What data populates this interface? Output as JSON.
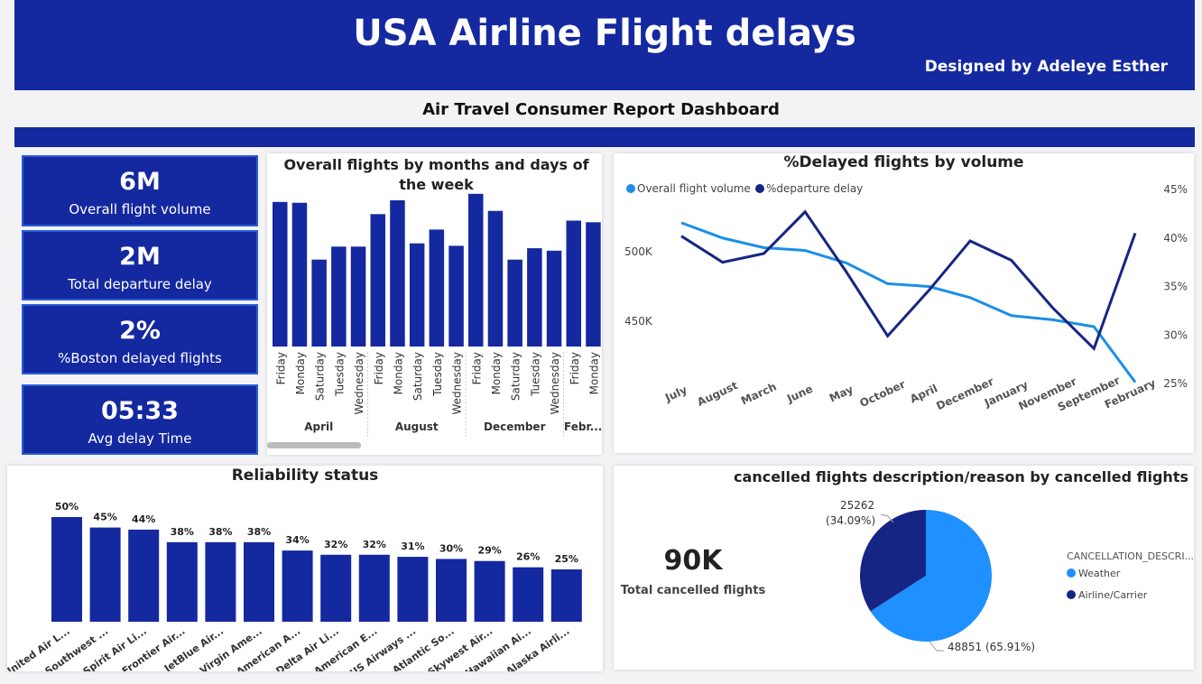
{
  "header": {
    "title": "USA Airline Flight delays",
    "designer": "Designed by Adeleye Esther",
    "subtitle": "Air Travel Consumer Report Dashboard"
  },
  "kpis": [
    {
      "value": "6M",
      "label": "Overall flight volume"
    },
    {
      "value": "2M",
      "label": "Total departure delay"
    },
    {
      "value": "2%",
      "label": "%Boston delayed flights"
    },
    {
      "value": "05:33",
      "label": "Avg delay Time"
    }
  ],
  "colors": {
    "navy": "#1428a0",
    "light_blue": "#1e90ff",
    "dark_series": "#162583",
    "light_series": "#1b8fe8"
  },
  "chart_data": [
    {
      "id": "months_days",
      "type": "bar",
      "title": "Overall flights by months and days of the week",
      "groups": [
        {
          "label": "April",
          "days": [
            "Friday",
            "Monday",
            "Saturday",
            "Tuesday",
            "Wednesday"
          ],
          "values": [
            178,
            177,
            107,
            123,
            123
          ]
        },
        {
          "label": "August",
          "days": [
            "Friday",
            "Monday",
            "Saturday",
            "Tuesday",
            "Wednesday"
          ],
          "values": [
            163,
            180,
            127,
            144,
            124
          ]
        },
        {
          "label": "December",
          "days": [
            "Friday",
            "Monday",
            "Saturday",
            "Tuesday",
            "Wednesday"
          ],
          "values": [
            188,
            167,
            107,
            121,
            118
          ]
        },
        {
          "label": "Febr...",
          "days": [
            "Friday",
            "Monday"
          ],
          "values": [
            155,
            153
          ]
        }
      ],
      "ylim": [
        0,
        200
      ]
    },
    {
      "id": "delayed_by_volume",
      "type": "line",
      "title": "%Delayed flights by volume",
      "categories": [
        "July",
        "August",
        "March",
        "June",
        "May",
        "October",
        "April",
        "December",
        "January",
        "November",
        "September",
        "February"
      ],
      "series": [
        {
          "name": "Overall flight volume",
          "axis": "left",
          "values": [
            521000,
            510000,
            503000,
            501000,
            492000,
            477000,
            475000,
            467000,
            454000,
            451000,
            446000,
            406000
          ]
        },
        {
          "name": "%departure delay",
          "axis": "right",
          "values": [
            40.2,
            37.5,
            38.4,
            42.7,
            36.5,
            29.9,
            34.6,
            39.7,
            37.7,
            32.8,
            28.6,
            40.5
          ]
        }
      ],
      "left_ticks": [
        "500K",
        "450K"
      ],
      "right_ticks": [
        "45%",
        "40%",
        "35%",
        "30%",
        "25%"
      ],
      "left_ylim": [
        405000,
        545000
      ],
      "right_ylim": [
        25,
        45
      ]
    },
    {
      "id": "reliability",
      "type": "bar",
      "title": "Reliability status",
      "categories": [
        "United Air L...",
        "Southwest ...",
        "Spirit Air Li...",
        "Frontier Air...",
        "JetBlue Air...",
        "Virgin Ame...",
        "American A...",
        "Delta Air Li...",
        "American E...",
        "US Airways ...",
        "Atlantic So...",
        "Skywest Air...",
        "Hawaiian Ai...",
        "Alaska Airli..."
      ],
      "values": [
        50,
        45,
        44,
        38,
        38,
        38,
        34,
        32,
        32,
        31,
        30,
        29,
        26,
        25
      ],
      "labels": [
        "50%",
        "45%",
        "44%",
        "38%",
        "38%",
        "38%",
        "34%",
        "32%",
        "32%",
        "31%",
        "30%",
        "29%",
        "26%",
        "25%"
      ],
      "ylim": [
        0,
        50
      ]
    },
    {
      "id": "cancelled",
      "type": "pie",
      "title": "cancelled flights description/reason by cancelled flights",
      "legend_title": "CANCELLATION_DESCRI...",
      "slices": [
        {
          "name": "Weather",
          "value": 48851,
          "label": "48851 (65.91%)"
        },
        {
          "name": "Airline/Carrier",
          "value": 25262,
          "label": "25262\n(34.09%)"
        }
      ],
      "kpi_value": "90K",
      "kpi_label": "Total cancelled flights"
    }
  ]
}
